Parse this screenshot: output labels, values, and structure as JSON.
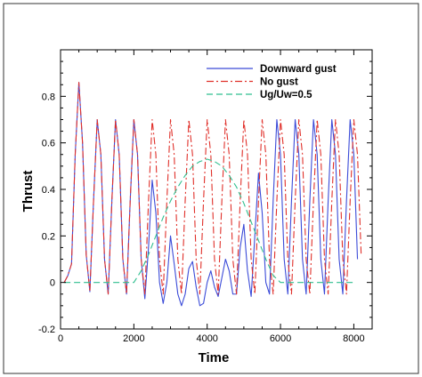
{
  "chart_data": {
    "type": "line",
    "xlabel": "Time",
    "ylabel": "Thrust",
    "xlim": [
      0,
      8500
    ],
    "ylim": [
      -0.2,
      1.0
    ],
    "x_ticks": [
      0,
      2000,
      4000,
      6000,
      8000
    ],
    "y_ticks": [
      -0.2,
      0,
      0.2,
      0.4,
      0.6,
      0.8
    ],
    "y_tick_labels": [
      "-0.2",
      "0",
      "0.2",
      "0.4",
      "0.6",
      "0.8"
    ],
    "grid": false,
    "legend_position": "top-right",
    "series": [
      {
        "name": "Downward gust",
        "color": "#3b4bd8",
        "dash": "solid",
        "x": [
          100,
          200,
          300,
          400,
          500,
          600,
          700,
          800,
          900,
          1000,
          1100,
          1200,
          1300,
          1400,
          1500,
          1600,
          1700,
          1800,
          1900,
          2000,
          2100,
          2200,
          2300,
          2400,
          2500,
          2600,
          2700,
          2800,
          2900,
          3000,
          3100,
          3200,
          3300,
          3400,
          3500,
          3600,
          3700,
          3800,
          3900,
          4000,
          4100,
          4200,
          4300,
          4400,
          4500,
          4600,
          4700,
          4800,
          4900,
          5000,
          5100,
          5200,
          5300,
          5400,
          5500,
          5600,
          5700,
          5800,
          5900,
          6000,
          6100,
          6200,
          6300,
          6400,
          6500,
          6600,
          6700,
          6800,
          6900,
          7000,
          7100,
          7200,
          7300,
          7400,
          7500,
          7600,
          7700,
          7800,
          7900,
          8000,
          8100
        ],
        "y": [
          0.0,
          0.03,
          0.08,
          0.55,
          0.86,
          0.6,
          0.12,
          -0.04,
          0.35,
          0.7,
          0.55,
          0.1,
          -0.05,
          0.35,
          0.7,
          0.55,
          0.1,
          -0.05,
          0.35,
          0.7,
          0.55,
          0.1,
          -0.07,
          0.15,
          0.44,
          0.3,
          0.0,
          -0.09,
          0.0,
          0.2,
          0.08,
          -0.05,
          -0.1,
          -0.05,
          0.06,
          0.09,
          -0.02,
          -0.1,
          -0.09,
          0.0,
          0.05,
          -0.02,
          -0.06,
          0.02,
          0.1,
          0.05,
          -0.05,
          -0.05,
          0.15,
          0.25,
          0.05,
          -0.06,
          0.2,
          0.47,
          0.3,
          0.0,
          -0.05,
          0.35,
          0.7,
          0.55,
          0.1,
          -0.05,
          0.35,
          0.7,
          0.55,
          0.1,
          -0.05,
          0.35,
          0.7,
          0.55,
          0.1,
          -0.05,
          0.35,
          0.7,
          0.55,
          0.1,
          -0.05,
          0.35,
          0.7,
          0.55,
          0.1
        ]
      },
      {
        "name": "No gust",
        "color": "#e0302a",
        "dash": "dashdot",
        "x": [
          100,
          200,
          300,
          400,
          500,
          600,
          700,
          800,
          900,
          1000,
          1100,
          1200,
          1300,
          1400,
          1500,
          1600,
          1700,
          1800,
          1900,
          2000,
          2100,
          2200,
          2300,
          2400,
          2500,
          2600,
          2700,
          2800,
          2900,
          3000,
          3100,
          3200,
          3300,
          3400,
          3500,
          3600,
          3700,
          3800,
          3900,
          4000,
          4100,
          4200,
          4300,
          4400,
          4500,
          4600,
          4700,
          4800,
          4900,
          5000,
          5100,
          5200,
          5300,
          5400,
          5500,
          5600,
          5700,
          5800,
          5900,
          6000,
          6100,
          6200,
          6300,
          6400,
          6500,
          6600,
          6700,
          6800,
          6900,
          7000,
          7100,
          7200,
          7300,
          7400,
          7500,
          7600,
          7700,
          7800,
          7900,
          8000,
          8100,
          8200
        ],
        "y": [
          0.0,
          0.03,
          0.08,
          0.55,
          0.86,
          0.6,
          0.12,
          -0.04,
          0.35,
          0.7,
          0.55,
          0.1,
          -0.05,
          0.35,
          0.7,
          0.55,
          0.1,
          -0.05,
          0.35,
          0.7,
          0.55,
          0.1,
          -0.05,
          0.35,
          0.7,
          0.55,
          0.1,
          -0.05,
          0.35,
          0.7,
          0.55,
          0.1,
          -0.05,
          0.35,
          0.7,
          0.55,
          0.1,
          -0.05,
          0.35,
          0.7,
          0.55,
          0.1,
          -0.05,
          0.35,
          0.7,
          0.55,
          0.1,
          -0.05,
          0.35,
          0.7,
          0.55,
          0.1,
          -0.05,
          0.35,
          0.7,
          0.55,
          0.1,
          -0.05,
          0.35,
          0.7,
          0.55,
          0.1,
          -0.05,
          0.35,
          0.7,
          0.55,
          0.1,
          -0.05,
          0.35,
          0.7,
          0.55,
          0.1,
          -0.05,
          0.35,
          0.7,
          0.55,
          0.1,
          -0.05,
          0.35,
          0.7,
          0.55,
          0.12
        ]
      },
      {
        "name": "Ug/Uw=0.5",
        "color": "#2fbf8f",
        "dash": "dashed",
        "x": [
          100,
          1800,
          2000,
          2200,
          2400,
          2600,
          2800,
          3000,
          3200,
          3400,
          3600,
          3800,
          4000,
          4200,
          4400,
          4600,
          4800,
          5000,
          5200,
          5400,
          5600,
          5800,
          6000,
          6200,
          8000
        ],
        "y": [
          0.0,
          0.0,
          0.0,
          0.05,
          0.12,
          0.2,
          0.28,
          0.35,
          0.41,
          0.46,
          0.5,
          0.52,
          0.53,
          0.52,
          0.5,
          0.46,
          0.41,
          0.34,
          0.26,
          0.18,
          0.1,
          0.03,
          0.0,
          0.0,
          0.0
        ]
      }
    ]
  }
}
